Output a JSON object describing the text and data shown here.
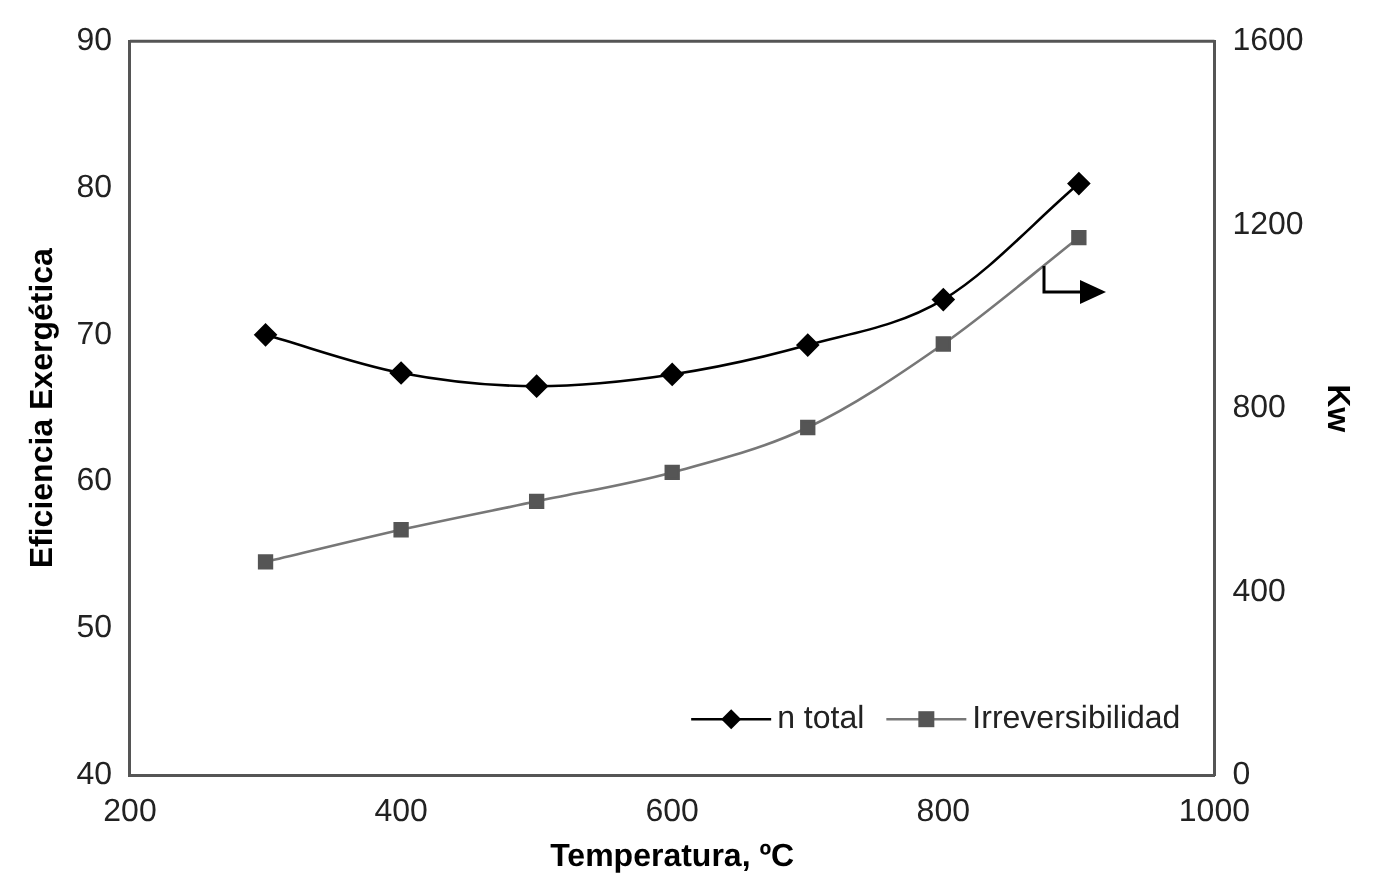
{
  "chart_data": {
    "type": "line",
    "xlabel": "Temperatura, ºC",
    "ylabel": "Eficiencia Exergética",
    "y2label": "Kw",
    "x": [
      300,
      400,
      500,
      600,
      700,
      800,
      900
    ],
    "series": [
      {
        "name": "n total",
        "color": "#000000",
        "marker": "diamond",
        "values": [
          70,
          67.4,
          66.5,
          67.3,
          69.3,
          72.4,
          80.3
        ]
      },
      {
        "name": "Irreversibilidad",
        "color": "#555555",
        "marker": "square",
        "axis": "y2",
        "values": [
          465,
          535,
          597,
          660,
          758,
          940,
          1172
        ]
      }
    ],
    "xlim": [
      200,
      1000
    ],
    "xticks": [
      200,
      400,
      600,
      800,
      1000
    ],
    "ylim": [
      40,
      90
    ],
    "yticks": [
      40,
      50,
      60,
      70,
      80,
      90
    ],
    "y2lim": [
      0,
      1600
    ],
    "y2ticks": [
      0,
      400,
      800,
      1200,
      1600
    ],
    "grid": false,
    "legend": "bottom right",
    "line_style": "solid"
  }
}
